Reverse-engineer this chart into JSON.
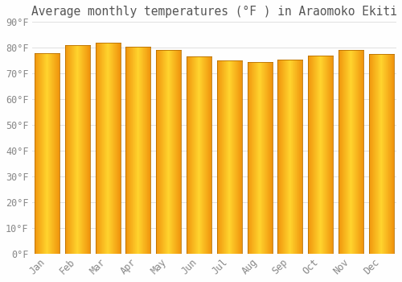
{
  "title": "Average monthly temperatures (°F ) in Araomoko Ekiti",
  "months": [
    "Jan",
    "Feb",
    "Mar",
    "Apr",
    "May",
    "Jun",
    "Jul",
    "Aug",
    "Sep",
    "Oct",
    "Nov",
    "Dec"
  ],
  "values": [
    78,
    81,
    82,
    80.5,
    79,
    76.5,
    75,
    74.5,
    75.5,
    77,
    79,
    77.5
  ],
  "bar_color_left": "#F0900A",
  "bar_color_center": "#FFD030",
  "bar_color_right": "#F09010",
  "bar_edge_color": "#CC7700",
  "background_color": "#FEFEFE",
  "grid_color": "#E0E0E0",
  "text_color": "#888888",
  "title_color": "#555555",
  "ylim": [
    0,
    90
  ],
  "yticks": [
    0,
    10,
    20,
    30,
    40,
    50,
    60,
    70,
    80,
    90
  ],
  "ytick_labels": [
    "0°F",
    "10°F",
    "20°F",
    "30°F",
    "40°F",
    "50°F",
    "60°F",
    "70°F",
    "80°F",
    "90°F"
  ],
  "title_fontsize": 10.5,
  "tick_fontsize": 8.5,
  "bar_width": 0.82
}
